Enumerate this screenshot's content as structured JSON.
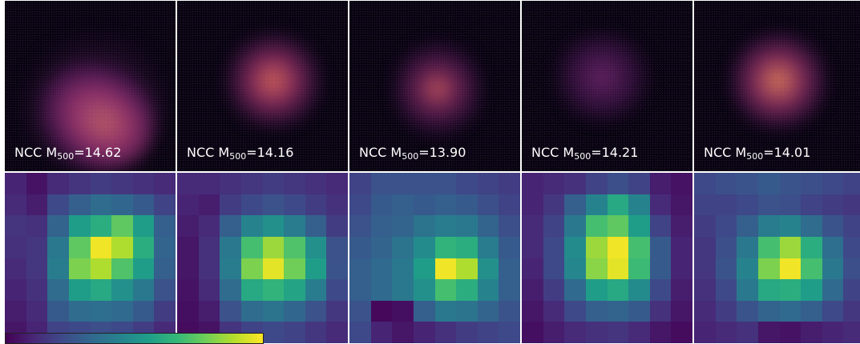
{
  "panels": [
    {
      "caption_prefix": "NCC M",
      "caption_sub": "500",
      "caption_value": "=14.62"
    },
    {
      "caption_prefix": "NCC M",
      "caption_sub": "500",
      "caption_value": "=14.16"
    },
    {
      "caption_prefix": "NCC M",
      "caption_sub": "500",
      "caption_value": "=13.90"
    },
    {
      "caption_prefix": "NCC M",
      "caption_sub": "500",
      "caption_value": "=14.21"
    },
    {
      "caption_prefix": "NCC M",
      "caption_sub": "500",
      "caption_value": "=14.01"
    }
  ],
  "heatmaps": [
    [
      [
        0.1,
        0.05,
        0.12,
        0.15,
        0.18,
        0.16,
        0.14,
        0.12
      ],
      [
        0.12,
        0.08,
        0.22,
        0.3,
        0.35,
        0.33,
        0.28,
        0.2
      ],
      [
        0.15,
        0.14,
        0.32,
        0.55,
        0.62,
        0.75,
        0.55,
        0.3
      ],
      [
        0.14,
        0.16,
        0.4,
        0.75,
        0.98,
        0.88,
        0.62,
        0.32
      ],
      [
        0.12,
        0.16,
        0.42,
        0.8,
        0.88,
        0.72,
        0.55,
        0.3
      ],
      [
        0.1,
        0.14,
        0.35,
        0.55,
        0.6,
        0.5,
        0.4,
        0.25
      ],
      [
        0.08,
        0.12,
        0.28,
        0.35,
        0.36,
        0.34,
        0.28,
        0.18
      ],
      [
        0.06,
        0.1,
        0.2,
        0.22,
        0.24,
        0.22,
        0.18,
        0.12
      ]
    ],
    [
      [
        0.12,
        0.12,
        0.14,
        0.16,
        0.18,
        0.16,
        0.14,
        0.12
      ],
      [
        0.1,
        0.08,
        0.18,
        0.22,
        0.25,
        0.22,
        0.18,
        0.14
      ],
      [
        0.08,
        0.12,
        0.3,
        0.45,
        0.5,
        0.42,
        0.3,
        0.18
      ],
      [
        0.06,
        0.14,
        0.4,
        0.7,
        0.85,
        0.72,
        0.5,
        0.25
      ],
      [
        0.06,
        0.14,
        0.42,
        0.8,
        0.96,
        0.78,
        0.55,
        0.26
      ],
      [
        0.05,
        0.12,
        0.35,
        0.6,
        0.65,
        0.58,
        0.42,
        0.22
      ],
      [
        0.04,
        0.08,
        0.25,
        0.35,
        0.38,
        0.33,
        0.25,
        0.16
      ],
      [
        0.03,
        0.05,
        0.15,
        0.2,
        0.22,
        0.2,
        0.16,
        0.12
      ]
    ],
    [
      [
        0.2,
        0.25,
        0.25,
        0.25,
        0.25,
        0.22,
        0.2,
        0.18
      ],
      [
        0.22,
        0.28,
        0.3,
        0.28,
        0.3,
        0.28,
        0.24,
        0.2
      ],
      [
        0.25,
        0.3,
        0.32,
        0.38,
        0.42,
        0.4,
        0.32,
        0.24
      ],
      [
        0.28,
        0.32,
        0.38,
        0.48,
        0.65,
        0.62,
        0.42,
        0.28
      ],
      [
        0.3,
        0.34,
        0.4,
        0.55,
        0.98,
        0.88,
        0.5,
        0.3
      ],
      [
        0.3,
        0.34,
        0.4,
        0.5,
        0.7,
        0.62,
        0.45,
        0.3
      ],
      [
        0.25,
        0.02,
        0.04,
        0.3,
        0.4,
        0.38,
        0.32,
        0.26
      ],
      [
        0.22,
        0.1,
        0.06,
        0.1,
        0.14,
        0.18,
        0.2,
        0.22
      ]
    ],
    [
      [
        0.1,
        0.12,
        0.14,
        0.2,
        0.24,
        0.2,
        0.08,
        0.05
      ],
      [
        0.1,
        0.16,
        0.3,
        0.45,
        0.6,
        0.45,
        0.12,
        0.06
      ],
      [
        0.12,
        0.2,
        0.4,
        0.7,
        0.75,
        0.55,
        0.2,
        0.08
      ],
      [
        0.12,
        0.22,
        0.48,
        0.85,
        0.98,
        0.7,
        0.28,
        0.1
      ],
      [
        0.1,
        0.22,
        0.46,
        0.82,
        0.96,
        0.68,
        0.28,
        0.1
      ],
      [
        0.08,
        0.18,
        0.34,
        0.55,
        0.6,
        0.48,
        0.22,
        0.08
      ],
      [
        0.06,
        0.12,
        0.22,
        0.3,
        0.32,
        0.28,
        0.14,
        0.06
      ],
      [
        0.04,
        0.08,
        0.12,
        0.14,
        0.15,
        0.12,
        0.06,
        0.03
      ]
    ],
    [
      [
        0.22,
        0.24,
        0.26,
        0.28,
        0.26,
        0.24,
        0.22,
        0.2
      ],
      [
        0.2,
        0.2,
        0.22,
        0.25,
        0.24,
        0.2,
        0.18,
        0.16
      ],
      [
        0.18,
        0.22,
        0.3,
        0.42,
        0.45,
        0.35,
        0.26,
        0.2
      ],
      [
        0.16,
        0.24,
        0.4,
        0.7,
        0.85,
        0.62,
        0.36,
        0.22
      ],
      [
        0.16,
        0.26,
        0.45,
        0.8,
        0.98,
        0.7,
        0.4,
        0.24
      ],
      [
        0.14,
        0.22,
        0.4,
        0.6,
        0.62,
        0.55,
        0.34,
        0.2
      ],
      [
        0.12,
        0.18,
        0.26,
        0.32,
        0.34,
        0.3,
        0.22,
        0.16
      ],
      [
        0.1,
        0.12,
        0.14,
        0.06,
        0.05,
        0.08,
        0.1,
        0.12
      ]
    ]
  ],
  "colormap": [
    "#440154",
    "#482878",
    "#3e4a89",
    "#31688e",
    "#26828e",
    "#1f9e89",
    "#35b779",
    "#6ece58",
    "#b5de2b",
    "#fde725"
  ]
}
